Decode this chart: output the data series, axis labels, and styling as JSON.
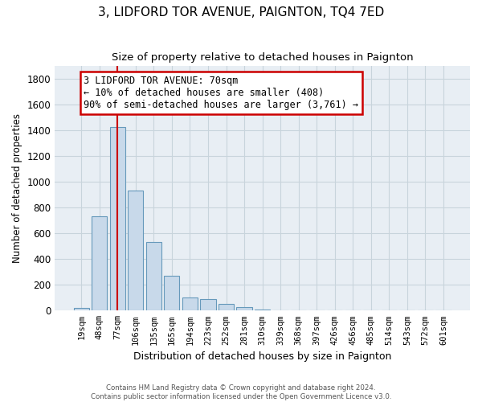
{
  "title": "3, LIDFORD TOR AVENUE, PAIGNTON, TQ4 7ED",
  "subtitle": "Size of property relative to detached houses in Paignton",
  "xlabel": "Distribution of detached houses by size in Paignton",
  "ylabel": "Number of detached properties",
  "bar_labels": [
    "19sqm",
    "48sqm",
    "77sqm",
    "106sqm",
    "135sqm",
    "165sqm",
    "194sqm",
    "223sqm",
    "252sqm",
    "281sqm",
    "310sqm",
    "339sqm",
    "368sqm",
    "397sqm",
    "426sqm",
    "456sqm",
    "485sqm",
    "514sqm",
    "543sqm",
    "572sqm",
    "601sqm"
  ],
  "bar_values": [
    20,
    735,
    1425,
    935,
    530,
    270,
    100,
    90,
    50,
    28,
    10,
    3,
    1,
    0,
    0,
    0,
    0,
    0,
    0,
    0,
    0
  ],
  "bar_color": "#c8d9ea",
  "bar_edge_color": "#6699bb",
  "vline_x_index": 2,
  "vline_color": "#cc0000",
  "ylim": [
    0,
    1900
  ],
  "yticks": [
    0,
    200,
    400,
    600,
    800,
    1000,
    1200,
    1400,
    1600,
    1800
  ],
  "annotation_title": "3 LIDFORD TOR AVENUE: 70sqm",
  "annotation_line1": "← 10% of detached houses are smaller (408)",
  "annotation_line2": "90% of semi-detached houses are larger (3,761) →",
  "footer_line1": "Contains HM Land Registry data © Crown copyright and database right 2024.",
  "footer_line2": "Contains public sector information licensed under the Open Government Licence v3.0.",
  "plot_bg_color": "#e8eef4",
  "grid_color": "#c8d4dc",
  "fig_bg_color": "#ffffff"
}
